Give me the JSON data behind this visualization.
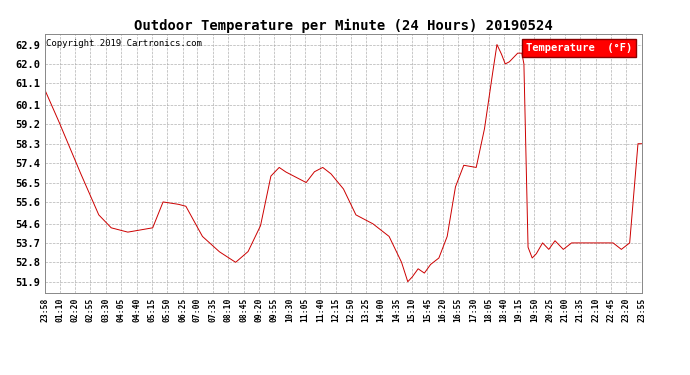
{
  "title": "Outdoor Temperature per Minute (24 Hours) 20190524",
  "copyright_text": "Copyright 2019 Cartronics.com",
  "legend_label": "Temperature  (°F)",
  "background_color": "#ffffff",
  "plot_bg_color": "#ffffff",
  "line_color": "#cc0000",
  "grid_color": "#aaaaaa",
  "yticks": [
    51.9,
    52.8,
    53.7,
    54.6,
    55.6,
    56.5,
    57.4,
    58.3,
    59.2,
    60.1,
    61.1,
    62.0,
    62.9
  ],
  "ylim": [
    51.4,
    63.4
  ],
  "x_labels": [
    "23:58",
    "01:10",
    "02:20",
    "02:55",
    "03:30",
    "04:05",
    "04:40",
    "05:15",
    "05:50",
    "06:25",
    "07:00",
    "07:35",
    "08:10",
    "08:45",
    "09:20",
    "09:55",
    "10:30",
    "11:05",
    "11:40",
    "12:15",
    "12:50",
    "13:25",
    "14:00",
    "14:35",
    "15:10",
    "15:45",
    "16:20",
    "16:55",
    "17:30",
    "18:05",
    "18:40",
    "19:15",
    "19:50",
    "20:25",
    "21:00",
    "21:35",
    "22:10",
    "22:45",
    "23:20",
    "23:55"
  ]
}
